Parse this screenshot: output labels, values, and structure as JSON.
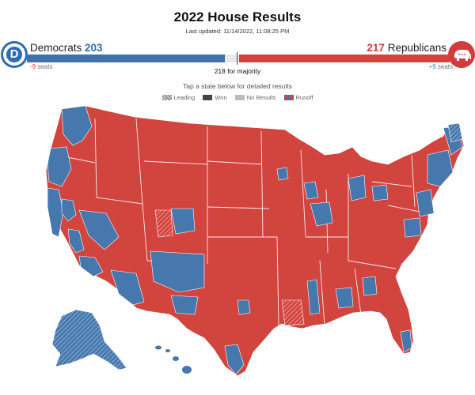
{
  "header": {
    "title": "2022 House Results",
    "last_updated": "Last updated: 11/14/2022, 11:08:25 PM"
  },
  "democrats": {
    "logo_letter": "D",
    "name": "Democrats",
    "seats": "203",
    "change": "-9",
    "change_unit": "seats",
    "color": "#2c6cb5"
  },
  "republicans": {
    "name": "Republicans",
    "seats": "217",
    "change": "+9",
    "change_unit": "seats",
    "color": "#d13c3c"
  },
  "majority_label": "218 for majority",
  "instructions": "Tap a state below for detailed results",
  "legend": {
    "leading": "Leading",
    "won": "Won",
    "no_results": "No Results",
    "runoff": "Runoff"
  },
  "map_colors": {
    "republican": "#d2443e",
    "democrat": "#4677ad",
    "no_results": "#bdbdbd"
  }
}
